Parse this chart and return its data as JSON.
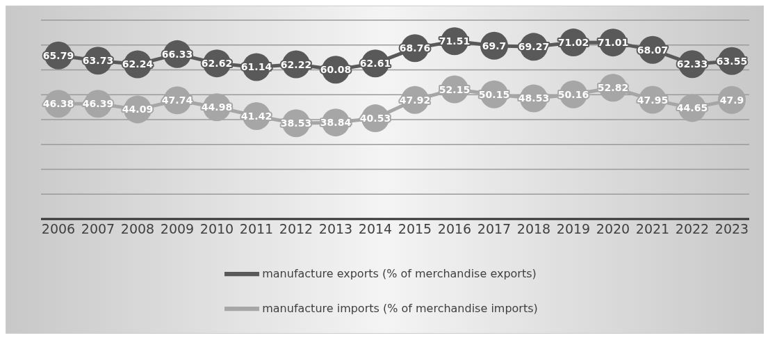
{
  "chart_data": {
    "type": "line",
    "categories": [
      "2006",
      "2007",
      "2008",
      "2009",
      "2010",
      "2011",
      "2012",
      "2013",
      "2014",
      "2015",
      "2016",
      "2017",
      "2018",
      "2019",
      "2020",
      "2021",
      "2022",
      "2023"
    ],
    "series": [
      {
        "name": "manufacture exports (% of merchandise exports)",
        "color": "#595959",
        "values": [
          65.79,
          63.73,
          62.24,
          66.33,
          62.62,
          61.14,
          62.22,
          60.08,
          62.61,
          68.76,
          71.51,
          69.7,
          69.27,
          71.02,
          71.01,
          68.07,
          62.33,
          63.55
        ]
      },
      {
        "name": "manufacture imports (% of merchandise imports)",
        "color": "#a6a6a6",
        "values": [
          46.38,
          46.39,
          44.09,
          47.74,
          44.98,
          41.42,
          38.53,
          38.84,
          40.53,
          47.92,
          52.15,
          50.15,
          48.53,
          50.16,
          52.82,
          47.95,
          44.65,
          47.9
        ]
      }
    ],
    "ylim": [
      0,
      80
    ],
    "yticks": [
      {
        "value": 0,
        "label": null
      },
      {
        "value": 10,
        "label": null
      },
      {
        "value": 20,
        "label": null
      },
      {
        "value": 30,
        "label": null
      },
      {
        "value": 40,
        "label": null
      },
      {
        "value": 50,
        "label": null
      },
      {
        "value": 60,
        "label": null
      },
      {
        "value": 70,
        "label": null
      },
      {
        "value": 80,
        "label": null
      }
    ],
    "grid": "y",
    "marker": "circle",
    "line_style": "solid",
    "data_labels": true,
    "legend": "bottom"
  }
}
